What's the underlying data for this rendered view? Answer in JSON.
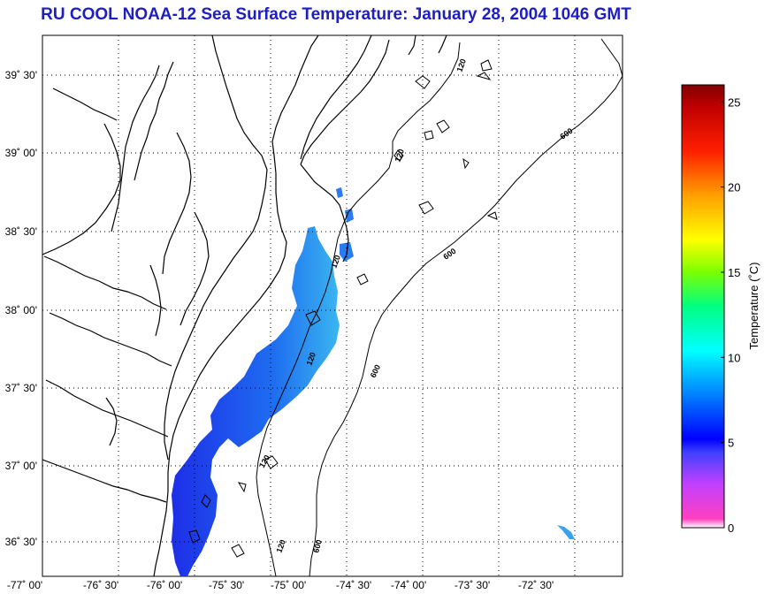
{
  "title": "RU COOL  NOAA-12  Sea Surface Temperature:  January 28, 2004 1046 GMT",
  "map": {
    "lon_ticks": [
      "-77˚ 00'",
      "-76˚ 30'",
      "-76˚ 00'",
      "-75˚ 30'",
      "-75˚ 00'",
      "-74˚ 30'",
      "-74˚ 00'",
      "-73˚ 30'",
      "-73˚ 00'",
      "-72˚ 30'"
    ],
    "lat_ticks": [
      "39˚ 30'",
      "39˚ 00'",
      "38˚ 30'",
      "38˚ 00'",
      "37˚ 30'",
      "37˚ 00'",
      "36˚ 30'"
    ],
    "contour_labels": {
      "c120": "120",
      "c600": "600"
    }
  },
  "colorbar": {
    "label": "Temperature (˚C)",
    "ticks": [
      "25",
      "20",
      "15",
      "10",
      "5",
      "0"
    ],
    "min": 0,
    "max": 26
  }
}
